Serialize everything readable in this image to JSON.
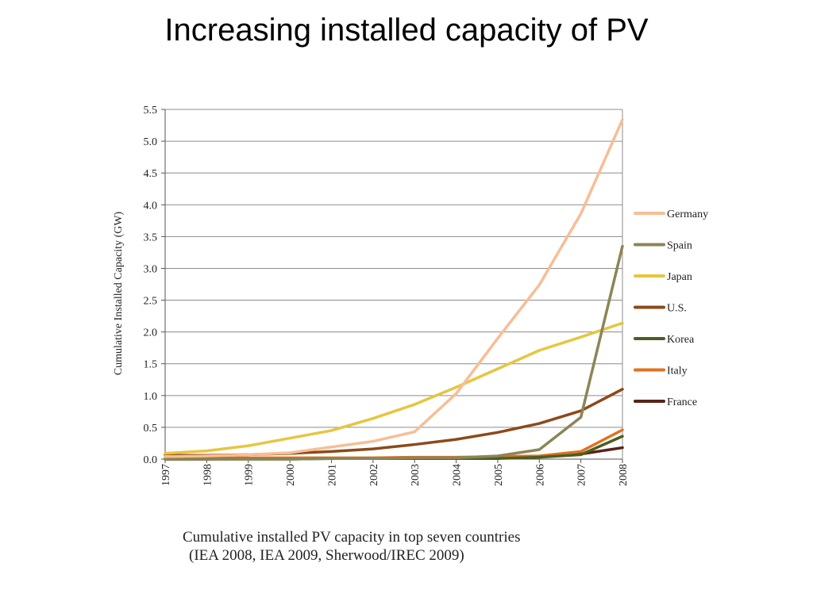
{
  "slide": {
    "title": "Increasing installed capacity of PV"
  },
  "caption": {
    "line1": "Cumulative installed PV capacity in top seven countries",
    "line2": "(IEA 2008, IEA 2009, Sherwood/IREC 2009)"
  },
  "chart_data": {
    "type": "line",
    "title": "",
    "xlabel": "",
    "ylabel": "Cumulative Installed Capacity (GW)",
    "x": [
      "1997",
      "1998",
      "1999",
      "2000",
      "2001",
      "2002",
      "2003",
      "2004",
      "2005",
      "2006",
      "2007",
      "2008"
    ],
    "ylim": [
      0,
      5.5
    ],
    "yticks": [
      "0.0",
      "0.5",
      "1.0",
      "1.5",
      "2.0",
      "2.5",
      "3.0",
      "3.5",
      "4.0",
      "4.5",
      "5.0",
      "5.5"
    ],
    "grid": "horizontal",
    "legend_position": "right",
    "series": [
      {
        "name": "Germany",
        "color": "#F7BE96",
        "values": [
          0.04,
          0.05,
          0.07,
          0.1,
          0.19,
          0.28,
          0.43,
          1.03,
          1.9,
          2.74,
          3.86,
          5.34
        ]
      },
      {
        "name": "Spain",
        "color": "#8C8557",
        "values": [
          0.0,
          0.0,
          0.0,
          0.0,
          0.01,
          0.01,
          0.02,
          0.02,
          0.05,
          0.15,
          0.66,
          3.35
        ]
      },
      {
        "name": "Japan",
        "color": "#E6C63F",
        "values": [
          0.09,
          0.13,
          0.21,
          0.33,
          0.45,
          0.64,
          0.86,
          1.13,
          1.42,
          1.71,
          1.92,
          2.14
        ]
      },
      {
        "name": "U.S.",
        "color": "#8B4A1A",
        "values": [
          0.06,
          0.06,
          0.07,
          0.09,
          0.12,
          0.16,
          0.23,
          0.31,
          0.42,
          0.56,
          0.76,
          1.1
        ]
      },
      {
        "name": "Korea",
        "color": "#4B5E23",
        "values": [
          0.0,
          0.0,
          0.0,
          0.0,
          0.01,
          0.01,
          0.01,
          0.01,
          0.01,
          0.03,
          0.07,
          0.36
        ]
      },
      {
        "name": "Italy",
        "color": "#E2711E",
        "values": [
          0.02,
          0.02,
          0.02,
          0.02,
          0.02,
          0.02,
          0.03,
          0.03,
          0.04,
          0.05,
          0.12,
          0.46
        ]
      },
      {
        "name": "France",
        "color": "#5A2318",
        "values": [
          0.0,
          0.0,
          0.01,
          0.01,
          0.01,
          0.01,
          0.01,
          0.02,
          0.03,
          0.04,
          0.08,
          0.18
        ]
      }
    ]
  }
}
